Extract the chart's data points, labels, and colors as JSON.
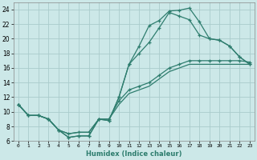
{
  "xlabel": "Humidex (Indice chaleur)",
  "background_color": "#cce8e8",
  "grid_color": "#aacccc",
  "line_color": "#2e7d6e",
  "xlim": [
    -0.5,
    23.5
  ],
  "ylim": [
    6,
    25
  ],
  "yticks": [
    6,
    8,
    10,
    12,
    14,
    16,
    18,
    20,
    22,
    24
  ],
  "xticks": [
    0,
    1,
    2,
    3,
    4,
    5,
    6,
    7,
    8,
    9,
    10,
    11,
    12,
    13,
    14,
    15,
    16,
    17,
    18,
    19,
    20,
    21,
    22,
    23
  ],
  "line1_y": [
    11,
    9.5,
    9.5,
    9.0,
    7.5,
    6.5,
    6.7,
    6.7,
    9.0,
    8.8,
    12.0,
    16.5,
    19.0,
    21.8,
    22.5,
    23.8,
    23.9,
    24.2,
    22.3,
    20.0,
    19.8,
    19.0,
    17.5,
    16.5
  ],
  "line2_y": [
    11,
    9.5,
    9.5,
    9.0,
    7.5,
    6.5,
    6.7,
    6.7,
    9.0,
    8.8,
    12.0,
    16.5,
    18.0,
    19.5,
    21.5,
    23.6,
    23.1,
    22.6,
    20.5,
    20.0,
    19.8,
    19.0,
    17.5,
    16.5
  ],
  "line3_y": [
    11.0,
    9.5,
    9.5,
    9.0,
    7.5,
    7.0,
    7.2,
    7.2,
    9.0,
    9.0,
    11.5,
    13.0,
    13.5,
    14.0,
    15.0,
    16.0,
    16.5,
    17.0,
    17.0,
    17.0,
    17.0,
    17.0,
    17.0,
    16.8
  ],
  "line4_y": [
    11.0,
    9.5,
    9.5,
    9.0,
    7.5,
    7.0,
    7.2,
    7.2,
    9.0,
    9.0,
    11.0,
    12.5,
    13.0,
    13.5,
    14.5,
    15.5,
    16.0,
    16.5,
    16.5,
    16.5,
    16.5,
    16.5,
    16.5,
    16.5
  ]
}
